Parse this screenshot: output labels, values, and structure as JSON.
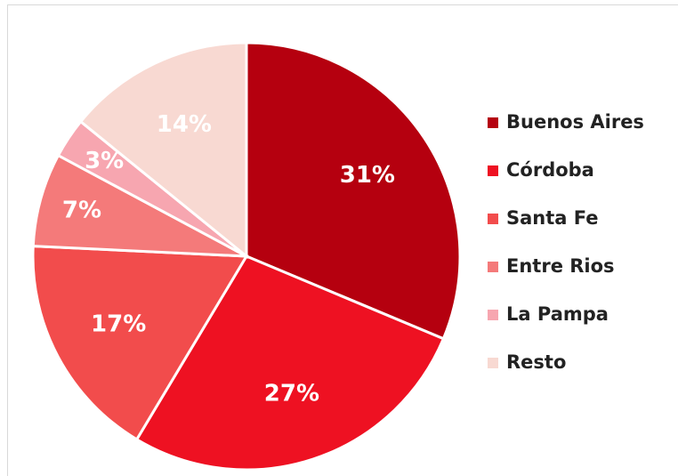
{
  "chart_data": {
    "type": "pie",
    "categories": [
      "Buenos Aires",
      "Córdoba",
      "Santa Fe",
      "Entre Rios",
      "La Pampa",
      "Resto"
    ],
    "values": [
      31,
      27,
      17,
      7,
      3,
      14
    ],
    "value_labels": [
      "31%",
      "27%",
      "17%",
      "7%",
      "3%",
      "14%"
    ],
    "colors": [
      "#b5000f",
      "#ee1122",
      "#f24c4c",
      "#f47a7a",
      "#f7a6b0",
      "#f8d9d2"
    ],
    "legend": "right"
  }
}
